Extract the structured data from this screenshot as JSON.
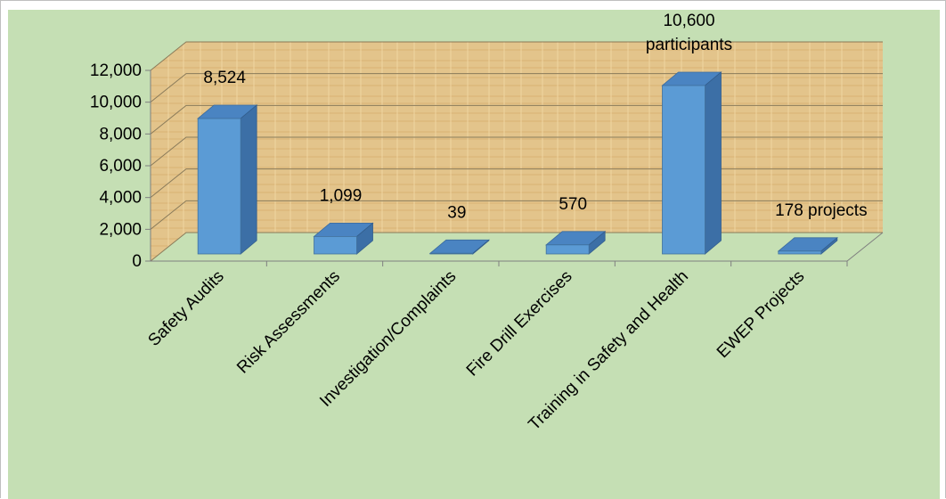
{
  "colors": {
    "background": "#c5dfb4",
    "wall": "#e3c48b",
    "floor": "#c6e0b4",
    "bar_front": "#5b9bd5",
    "bar_top": "#4a84c2",
    "bar_side": "#3c6fa6",
    "gridline": "#8a7b5a"
  },
  "chart_data": {
    "type": "bar",
    "title": "",
    "xlabel": "",
    "ylabel": "",
    "ylim": [
      0,
      12000
    ],
    "yticks": [
      "0",
      "2,000",
      "4,000",
      "6,000",
      "8,000",
      "10,000",
      "12,000"
    ],
    "ytick_values": [
      0,
      2000,
      4000,
      6000,
      8000,
      10000,
      12000
    ],
    "grid": true,
    "legend": "none",
    "categories": [
      "Safety Audits",
      "Risk Assessments",
      "Investigation/Complaints",
      "Fire Drill Exercises",
      "Training in Safety and Health",
      "EWEP Projects"
    ],
    "values": [
      8524,
      1099,
      39,
      570,
      10600,
      178
    ],
    "data_labels": [
      [
        "8,524"
      ],
      [
        "1,099"
      ],
      [
        "39"
      ],
      [
        "570"
      ],
      [
        "10,600",
        "participants"
      ],
      [
        "178 projects"
      ]
    ]
  }
}
